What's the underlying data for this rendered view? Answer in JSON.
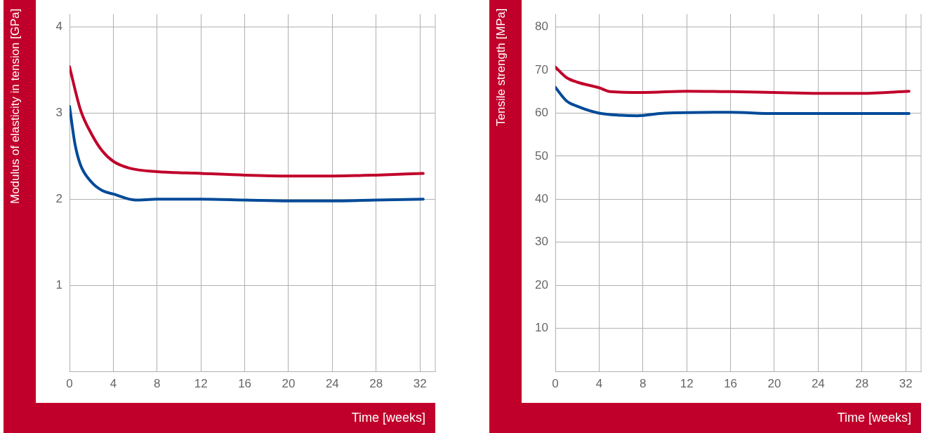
{
  "chart_data": [
    {
      "type": "line",
      "xlabel": "Time [weeks]",
      "ylabel": "Modulus of elasticity in tension [GPa]",
      "xlim": [
        0,
        33.4
      ],
      "xticks": [
        0,
        4,
        8,
        12,
        16,
        20,
        24,
        28,
        32
      ],
      "ylim": [
        0,
        4.15
      ],
      "yticks": [
        1,
        2,
        3,
        4
      ],
      "grid": true,
      "marker": "none",
      "line_style": "solid",
      "series": [
        {
          "color": "#c0002a",
          "x": [
            0,
            1,
            2,
            3,
            4,
            5.5,
            8,
            12,
            16,
            20,
            24,
            28,
            32.3
          ],
          "values": [
            3.54,
            3.04,
            2.76,
            2.56,
            2.44,
            2.36,
            2.32,
            2.3,
            2.28,
            2.27,
            2.27,
            2.28,
            2.3
          ]
        },
        {
          "color": "#004a98",
          "x": [
            0,
            0.5,
            1,
            2,
            3,
            4,
            6,
            8,
            12,
            16,
            20,
            24,
            28,
            32.3
          ],
          "values": [
            3.08,
            2.64,
            2.4,
            2.2,
            2.1,
            2.06,
            1.99,
            2.0,
            2.0,
            1.99,
            1.98,
            1.98,
            1.99,
            2.0
          ]
        }
      ]
    },
    {
      "type": "line",
      "xlabel": "Time [weeks]",
      "ylabel": "Tensile strength [MPa]",
      "xlim": [
        0,
        33.4
      ],
      "xticks": [
        0,
        4,
        8,
        12,
        16,
        20,
        24,
        28,
        32
      ],
      "ylim": [
        0,
        83
      ],
      "yticks": [
        10,
        20,
        30,
        40,
        50,
        60,
        70,
        80
      ],
      "grid": true,
      "marker": "none",
      "line_style": "solid",
      "series": [
        {
          "color": "#c0002a",
          "x": [
            0,
            1,
            2,
            4,
            5,
            8,
            12,
            16,
            20,
            24,
            28,
            32.3
          ],
          "values": [
            70.7,
            68.3,
            67.2,
            65.9,
            65,
            64.8,
            65.1,
            65,
            64.8,
            64.6,
            64.6,
            65.1
          ]
        },
        {
          "color": "#004a98",
          "x": [
            0,
            1,
            2,
            4,
            6,
            7.5,
            10,
            16,
            20,
            32.3
          ],
          "values": [
            66,
            62.9,
            61.6,
            60,
            59.5,
            59.4,
            60,
            60.2,
            59.9,
            59.9
          ]
        }
      ]
    }
  ]
}
